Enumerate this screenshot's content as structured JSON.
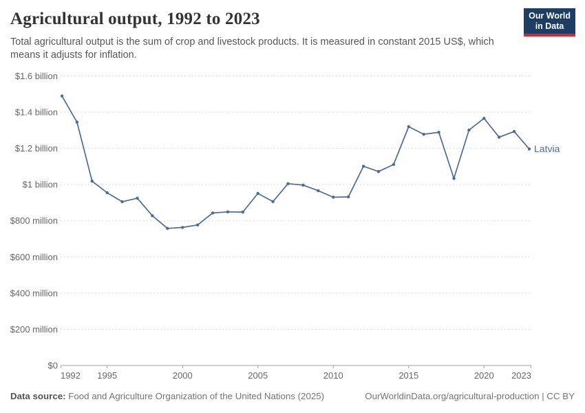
{
  "header": {
    "title": "Agricultural output, 1992 to 2023",
    "subtitle": "Total agricultural output is the sum of crop and livestock products. It is measured in constant 2015 US$, which\nmeans it adjusts for inflation.",
    "logo": {
      "line1": "Our World",
      "line2": "in Data"
    }
  },
  "chart_data": {
    "type": "line",
    "title": "Agricultural output, 1992 to 2023",
    "unit": "constant 2015 US$",
    "xlabel": "",
    "ylabel": "",
    "grid": "horizontal-dashed",
    "legend_position": "end-of-line-label",
    "ylim_million_usd": [
      0,
      1600
    ],
    "x": [
      1992,
      1993,
      1994,
      1995,
      1996,
      1997,
      1998,
      1999,
      2000,
      2001,
      2002,
      2003,
      2004,
      2005,
      2006,
      2007,
      2008,
      2009,
      2010,
      2011,
      2012,
      2013,
      2014,
      2015,
      2016,
      2017,
      2018,
      2019,
      2020,
      2021,
      2022,
      2023
    ],
    "series": [
      {
        "name": "Latvia",
        "values_million_usd": [
          1490,
          1345,
          1019,
          955,
          905,
          925,
          828,
          758,
          763,
          777,
          843,
          849,
          848,
          951,
          906,
          1005,
          997,
          966,
          930,
          932,
          1101,
          1072,
          1111,
          1320,
          1278,
          1289,
          1034,
          1301,
          1366,
          1262,
          1293,
          1197
        ]
      }
    ],
    "y_ticks": [
      {
        "value": 1600,
        "label": "$1.6 billion"
      },
      {
        "value": 1400,
        "label": "$1.4 billion"
      },
      {
        "value": 1200,
        "label": "$1.2 billion"
      },
      {
        "value": 1000,
        "label": "$1 billion"
      },
      {
        "value": 800,
        "label": "$800 million"
      },
      {
        "value": 600,
        "label": "$600 million"
      },
      {
        "value": 400,
        "label": "$400 million"
      },
      {
        "value": 200,
        "label": "$200 million"
      },
      {
        "value": 0,
        "label": "$0"
      }
    ],
    "x_ticks": [
      {
        "year": 1992,
        "label": "1992",
        "align": "start"
      },
      {
        "year": 1995,
        "label": "1995",
        "align": "middle"
      },
      {
        "year": 2000,
        "label": "2000",
        "align": "middle"
      },
      {
        "year": 2005,
        "label": "2005",
        "align": "middle"
      },
      {
        "year": 2010,
        "label": "2010",
        "align": "middle"
      },
      {
        "year": 2015,
        "label": "2015",
        "align": "middle"
      },
      {
        "year": 2020,
        "label": "2020",
        "align": "middle"
      },
      {
        "year": 2023,
        "label": "2023",
        "align": "end"
      }
    ],
    "series_end_label": "Latvia"
  },
  "footer": {
    "data_source_label": "Data source:",
    "data_source_text": "Food and Agriculture Organization of the United Nations (2025)",
    "credit": "OurWorldinData.org/agricultural-production | CC BY"
  },
  "colors": {
    "line": "#4C6A9C",
    "series_label": "#4C6A9C",
    "gridline": "#dadada",
    "axis": "#a3a3a3",
    "axis_label": "#666666",
    "logo_bg": "#1d3d63",
    "logo_red": "#e0232e"
  }
}
